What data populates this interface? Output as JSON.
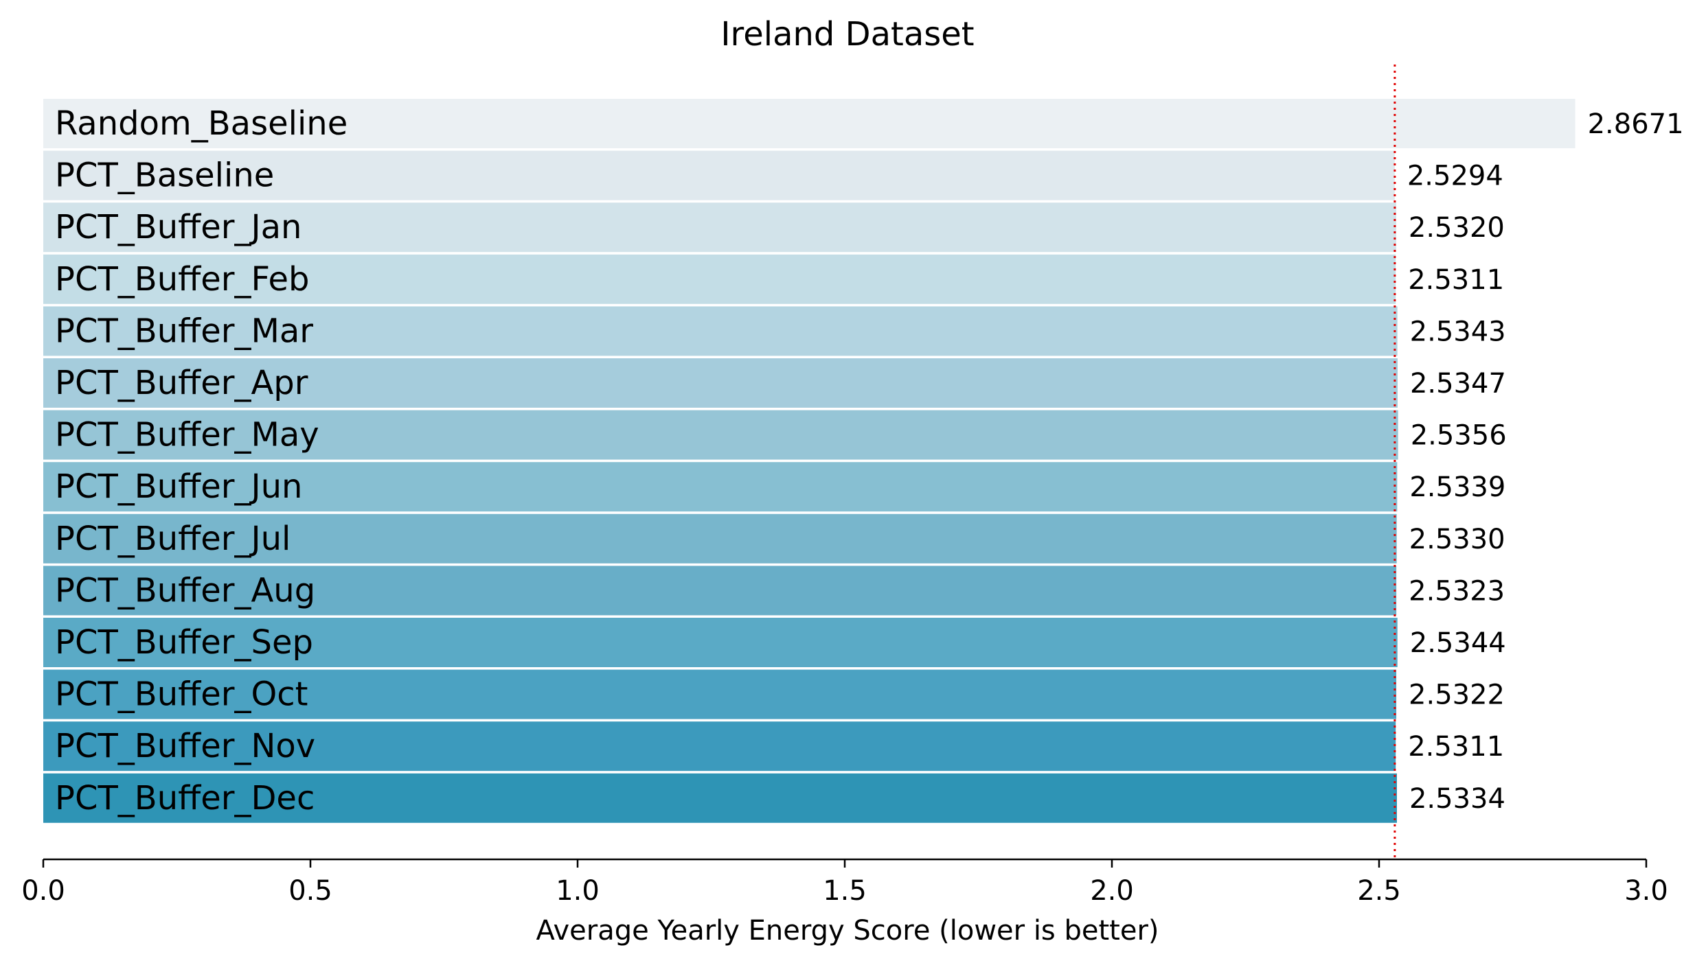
{
  "chart_data": {
    "type": "bar",
    "orientation": "horizontal",
    "title": "Ireland Dataset",
    "xlabel": "Average Yearly Energy Score (lower is better)",
    "ylabel": "",
    "xlim": [
      0,
      3.0
    ],
    "xticks": [
      "0.0",
      "0.5",
      "1.0",
      "1.5",
      "2.0",
      "2.5",
      "3.0"
    ],
    "grid": false,
    "categories": [
      "Random_Baseline",
      "PCT_Baseline",
      "PCT_Buffer_Jan",
      "PCT_Buffer_Feb",
      "PCT_Buffer_Mar",
      "PCT_Buffer_Apr",
      "PCT_Buffer_May",
      "PCT_Buffer_Jun",
      "PCT_Buffer_Jul",
      "PCT_Buffer_Aug",
      "PCT_Buffer_Sep",
      "PCT_Buffer_Oct",
      "PCT_Buffer_Nov",
      "PCT_Buffer_Dec"
    ],
    "values": [
      2.8671,
      2.5294,
      2.532,
      2.5311,
      2.5343,
      2.5347,
      2.5356,
      2.5339,
      2.533,
      2.5323,
      2.5344,
      2.5322,
      2.5311,
      2.5334
    ],
    "value_labels": [
      "2.8671",
      "2.5294",
      "2.5320",
      "2.5311",
      "2.5343",
      "2.5347",
      "2.5356",
      "2.5339",
      "2.5330",
      "2.5323",
      "2.5344",
      "2.5322",
      "2.5311",
      "2.5334"
    ],
    "bar_colors": [
      "#ebf0f3",
      "#e0e9ee",
      "#d2e3ea",
      "#c3dde6",
      "#b3d4e1",
      "#a5ccdc",
      "#96c5d6",
      "#87bfd2",
      "#78b6cc",
      "#68aec8",
      "#5aaac6",
      "#4ba2c2",
      "#3c9abd",
      "#2e94b5"
    ],
    "reference_line": {
      "value": 2.5294,
      "style": "dotted",
      "color": "#e00000"
    }
  }
}
